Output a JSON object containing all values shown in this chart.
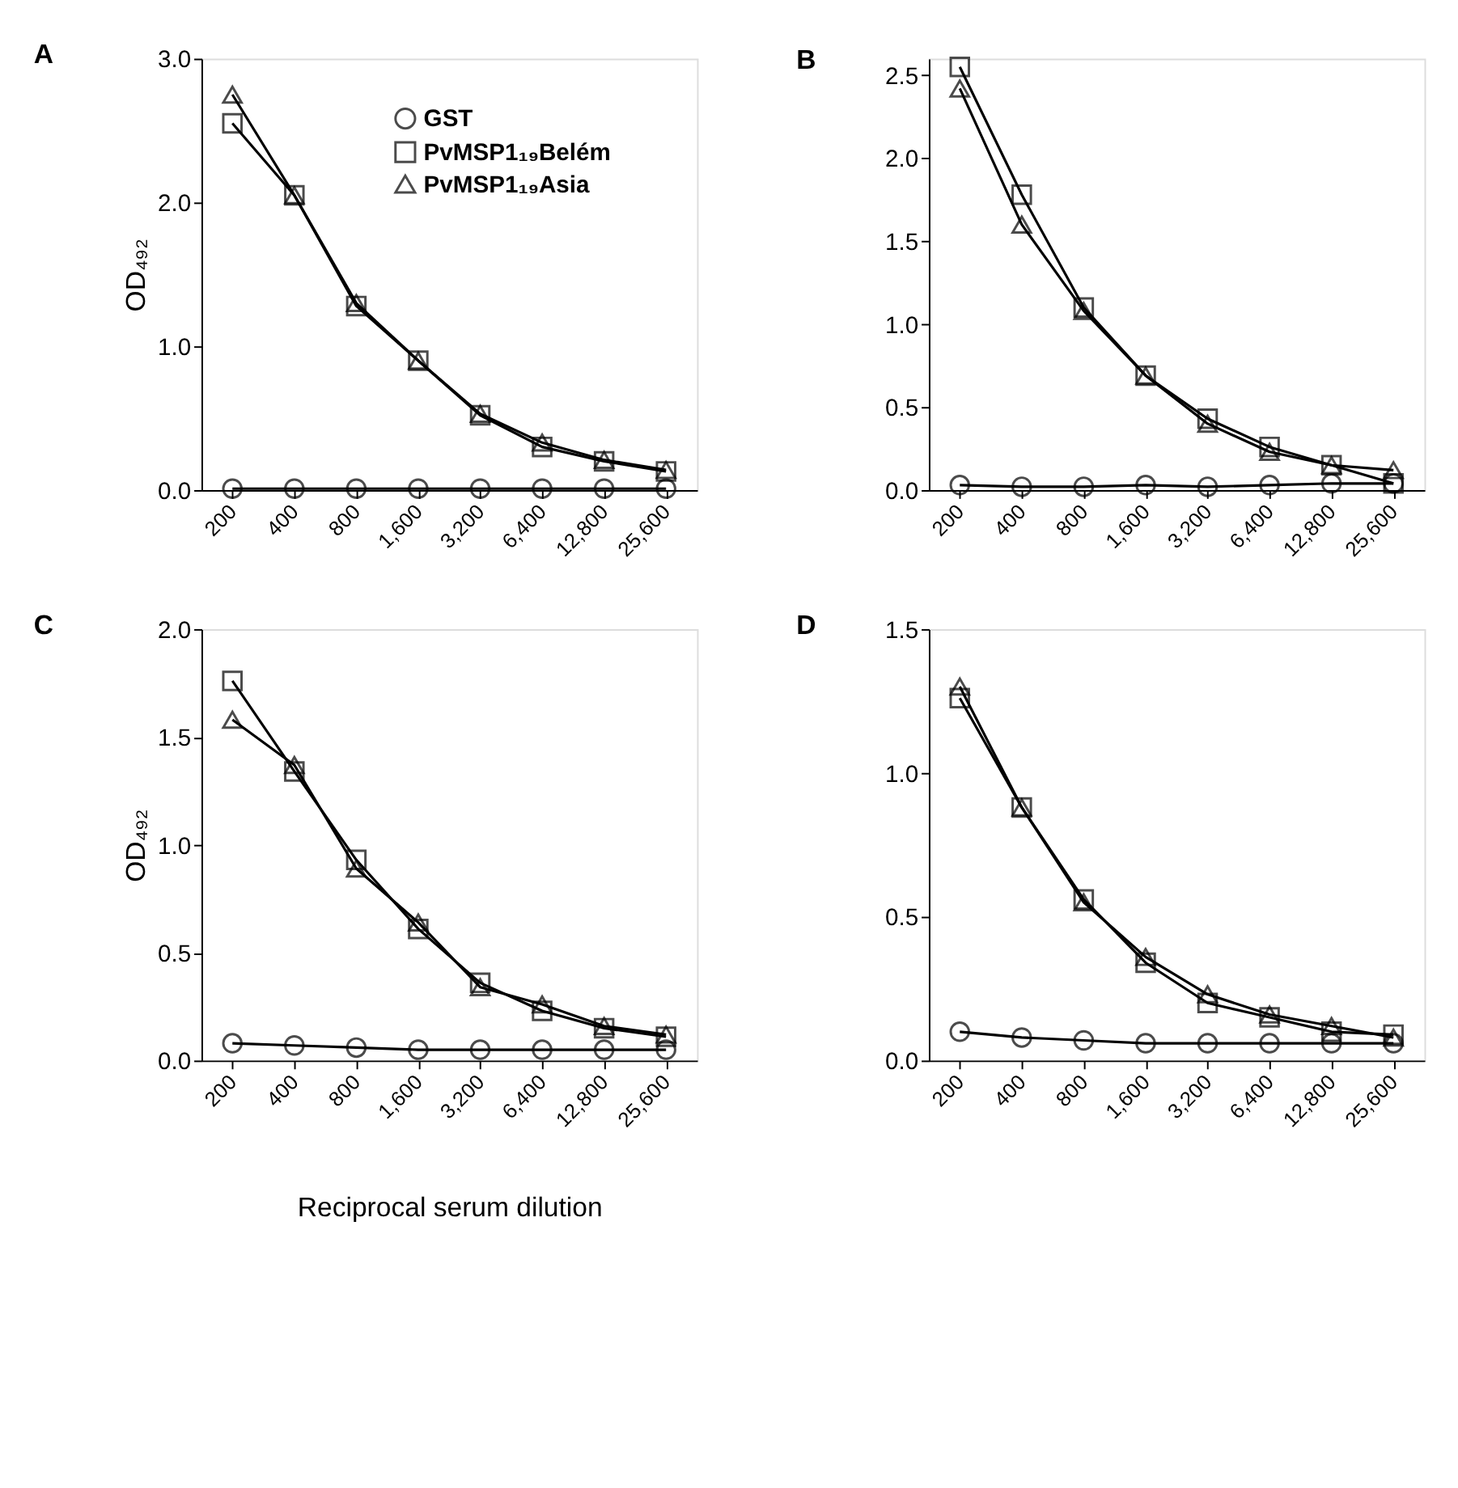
{
  "chart_data": [
    {
      "type": "line",
      "title": "A",
      "ylabel": "OD₄₉₂",
      "legend": "top right",
      "categories": [
        "200",
        "400",
        "800",
        "1,600",
        "3,200",
        "6,400",
        "12,800",
        "25,600"
      ],
      "ylim": [
        0,
        3
      ],
      "yticks": [
        {
          "value": 0,
          "label": "0.0"
        },
        {
          "value": 1,
          "label": "1.0"
        },
        {
          "value": 2,
          "label": "2.0"
        },
        {
          "value": 3,
          "label": "3.0"
        }
      ],
      "series": [
        {
          "name": "GST",
          "color": "#000000",
          "marker": "circle",
          "values": [
            0.01,
            0.01,
            0.01,
            0.01,
            0.01,
            0.01,
            0.01,
            0.01
          ]
        },
        {
          "name": "PvMSP1₁₉Belém",
          "color": "#000000",
          "marker": "square",
          "values": [
            2.55,
            2.05,
            1.28,
            0.9,
            0.52,
            0.3,
            0.2,
            0.13
          ]
        },
        {
          "name": "PvMSP1₁₉Asia",
          "color": "#000000",
          "marker": "triangle",
          "values": [
            2.75,
            2.05,
            1.3,
            0.9,
            0.53,
            0.33,
            0.21,
            0.14
          ]
        }
      ]
    },
    {
      "type": "line",
      "title": "B",
      "categories": [
        "200",
        "400",
        "800",
        "1,600",
        "3,200",
        "6,400",
        "12,800",
        "25,600"
      ],
      "ylim": [
        0,
        2.6
      ],
      "yticks": [
        {
          "value": 0,
          "label": "0.0"
        },
        0.5,
        {
          "value": 1,
          "label": "1.0"
        },
        1.5,
        {
          "value": 2,
          "label": "2.0"
        },
        2.5
      ],
      "series": [
        {
          "color": "#000000",
          "marker": "circle",
          "values": [
            0.03,
            0.02,
            0.02,
            0.03,
            0.02,
            0.03,
            0.04,
            0.04
          ]
        },
        {
          "color": "#000000",
          "marker": "square",
          "values": [
            2.55,
            1.78,
            1.1,
            0.69,
            0.43,
            0.26,
            0.15,
            0.04
          ]
        },
        {
          "color": "#000000",
          "marker": "triangle",
          "values": [
            2.42,
            1.6,
            1.08,
            0.69,
            0.4,
            0.23,
            0.15,
            0.12
          ]
        }
      ]
    },
    {
      "type": "line",
      "title": "C",
      "ylabel": "OD₄₉₂",
      "xlabel": "Reciprocal serum dilution",
      "categories": [
        "200",
        "400",
        "800",
        "1,600",
        "3,200",
        "6,400",
        "12,800",
        "25,600"
      ],
      "ylim": [
        0,
        2
      ],
      "yticks": [
        {
          "value": 0,
          "label": "0.0"
        },
        0.5,
        {
          "value": 1,
          "label": "1.0"
        },
        1.5,
        {
          "value": 2,
          "label": "2.0"
        }
      ],
      "series": [
        {
          "color": "#000000",
          "marker": "circle",
          "values": [
            0.08,
            0.07,
            0.06,
            0.05,
            0.05,
            0.05,
            0.05,
            0.05
          ]
        },
        {
          "color": "#000000",
          "marker": "square",
          "values": [
            1.76,
            1.34,
            0.93,
            0.61,
            0.36,
            0.23,
            0.15,
            0.11
          ]
        },
        {
          "color": "#000000",
          "marker": "triangle",
          "values": [
            1.58,
            1.37,
            0.89,
            0.64,
            0.34,
            0.26,
            0.16,
            0.12
          ]
        }
      ]
    },
    {
      "type": "line",
      "title": "D",
      "categories": [
        "200",
        "400",
        "800",
        "1,600",
        "3,200",
        "6,400",
        "12,800",
        "25,600"
      ],
      "ylim": [
        0,
        1.5
      ],
      "yticks": [
        {
          "value": 0,
          "label": "0.0"
        },
        0.5,
        {
          "value": 1,
          "label": "1.0"
        },
        1.5
      ],
      "series": [
        {
          "color": "#000000",
          "marker": "circle",
          "values": [
            0.1,
            0.08,
            0.07,
            0.06,
            0.06,
            0.06,
            0.06,
            0.06
          ]
        },
        {
          "color": "#000000",
          "marker": "square",
          "values": [
            1.26,
            0.88,
            0.56,
            0.34,
            0.2,
            0.15,
            0.1,
            0.09
          ]
        },
        {
          "color": "#000000",
          "marker": "triangle",
          "values": [
            1.3,
            0.88,
            0.55,
            0.36,
            0.23,
            0.16,
            0.12,
            0.08
          ]
        }
      ]
    }
  ]
}
